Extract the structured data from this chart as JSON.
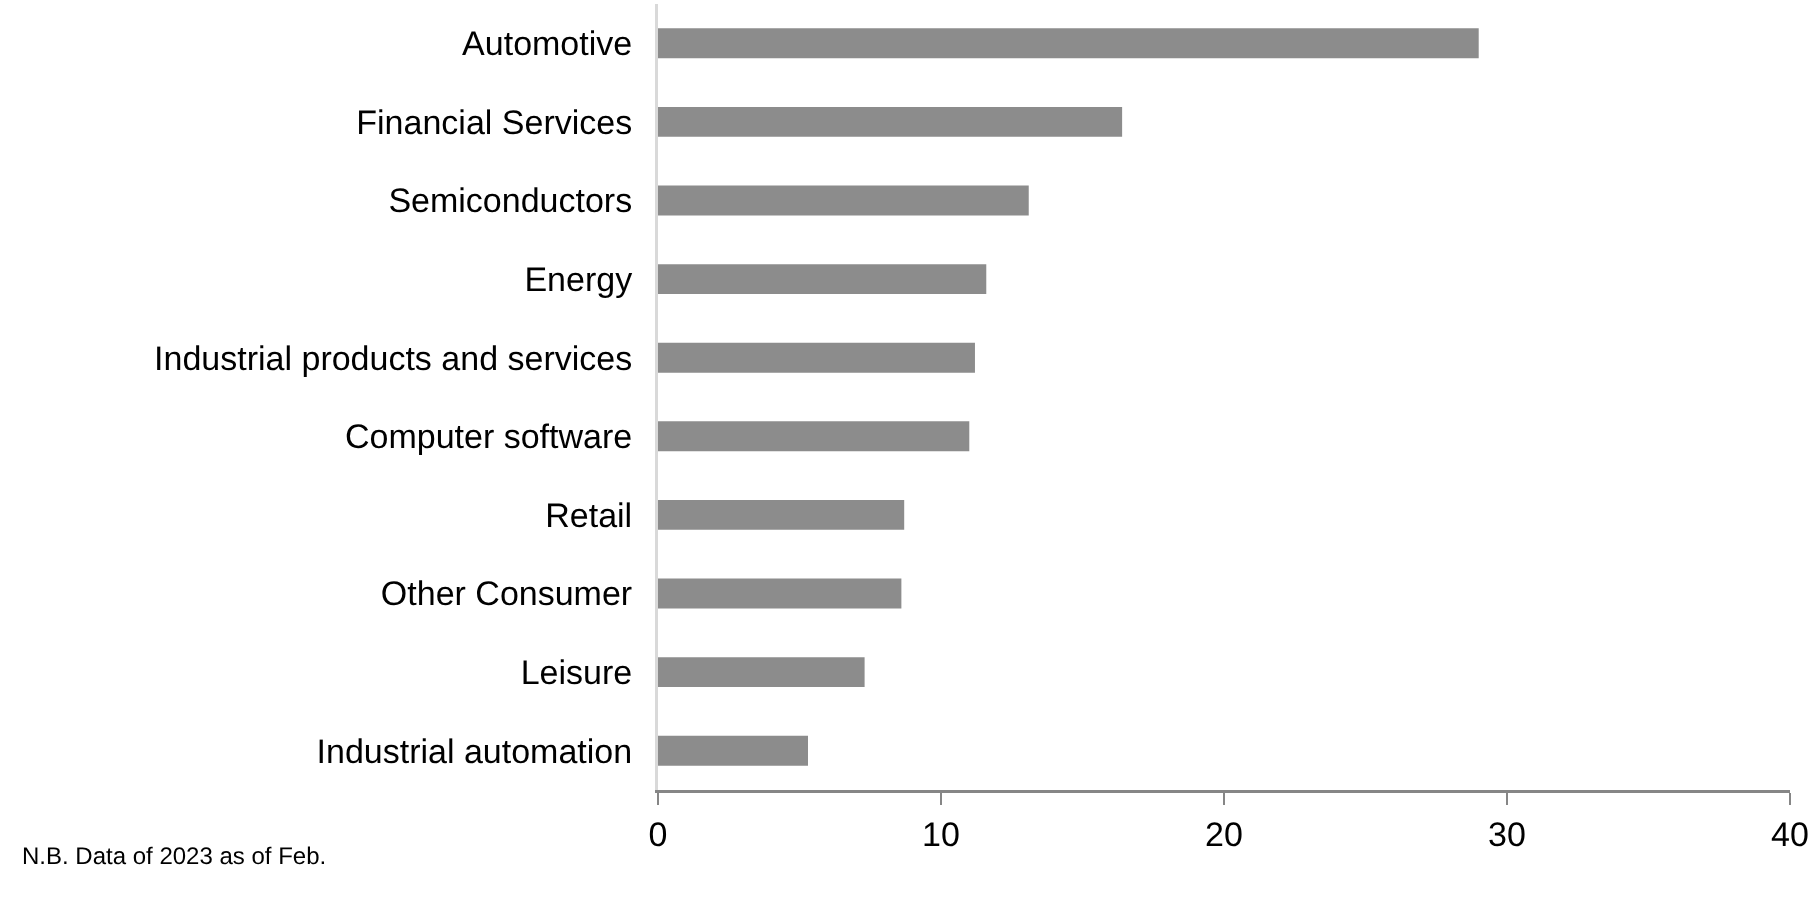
{
  "chart_data": {
    "type": "bar",
    "orientation": "horizontal",
    "categories": [
      "Automotive",
      "Financial Services",
      "Semiconductors",
      "Energy",
      "Industrial products and services",
      "Computer software",
      "Retail",
      "Other Consumer",
      "Leisure",
      "Industrial automation"
    ],
    "values": [
      29.0,
      16.4,
      13.1,
      11.6,
      11.2,
      11.0,
      8.7,
      8.6,
      7.3,
      5.3
    ],
    "color": "#8c8c8c",
    "xlim": [
      0,
      40
    ],
    "xticks": [
      0,
      10,
      20,
      30,
      40
    ],
    "grid": false,
    "annotations": [
      "N.B. Data of 2023 as of Feb."
    ]
  }
}
